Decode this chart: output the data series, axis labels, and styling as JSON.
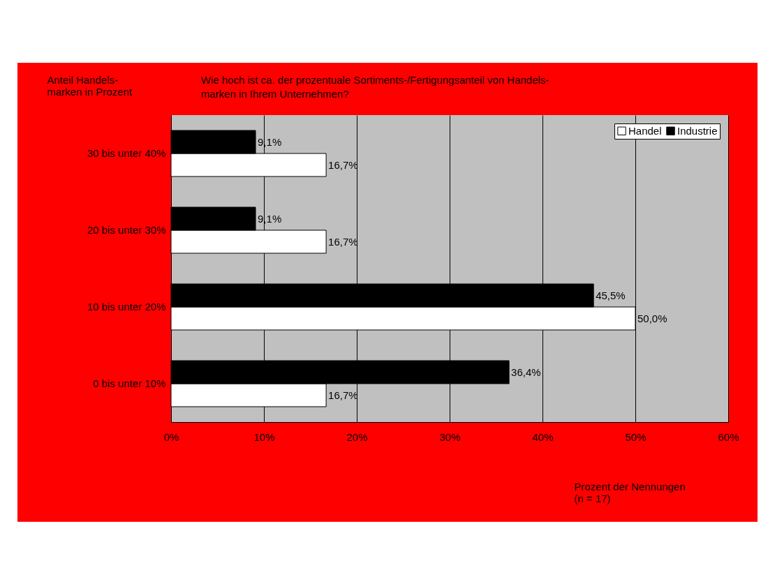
{
  "chart_data": {
    "type": "bar",
    "orientation": "horizontal",
    "title": "Wie hoch ist ca. der prozentuale Sortiments-/Fertigungsanteil von Handels-\nmarken in Ihrem Unternehmen?",
    "ylabel": "Anteil Handels-\nmarken in Prozent",
    "xlabel": "Prozent der Nennungen\n(n = 17)",
    "categories": [
      "30 bis unter 40%",
      "20 bis unter 30%",
      "10 bis unter 20%",
      "0 bis unter 10%"
    ],
    "series": [
      {
        "name": "Handel",
        "color": "#ffffff",
        "values": [
          16.7,
          16.7,
          50.0,
          16.7
        ],
        "value_labels": [
          "16,7%",
          "16,7%",
          "50,0%",
          "16,7%"
        ]
      },
      {
        "name": "Industrie",
        "color": "#000000",
        "values": [
          9.1,
          9.1,
          45.5,
          36.4
        ],
        "value_labels": [
          "9,1%",
          "9,1%",
          "45,5%",
          "36,4%"
        ]
      }
    ],
    "xlim": [
      0,
      60
    ],
    "xticks": [
      {
        "value": 0,
        "label": "0%"
      },
      {
        "value": 10,
        "label": "10%"
      },
      {
        "value": 20,
        "label": "20%"
      },
      {
        "value": 30,
        "label": "30%"
      },
      {
        "value": 40,
        "label": "40%"
      },
      {
        "value": 50,
        "label": "50%"
      },
      {
        "value": 60,
        "label": "60%"
      }
    ],
    "grid": "x",
    "legend": "top right"
  }
}
